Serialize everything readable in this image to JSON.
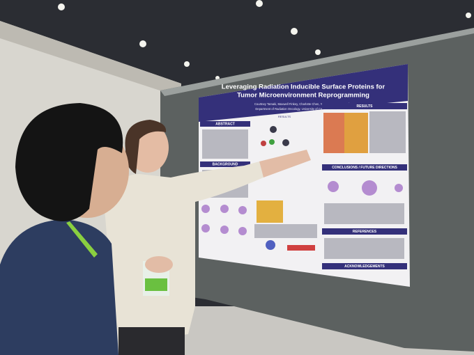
{
  "poster": {
    "title_lines": [
      "Leveraging Radiation Inducible Surface Proteins for",
      "Tumor Microenvironment Reprogramming"
    ],
    "authors": "Courtney Tamaki, Maxwell Finkey, Charlotte Chen, Yang Xu, Nam Woo Cho",
    "affiliation": "Department of Radiation Oncology, University of California, San Francisco",
    "sections": [
      "ABSTRACT",
      "RESULTS",
      "RESULTS",
      "BACKGROUND",
      "CONCLUSIONS / FUTURE DIRECTIONS",
      "REFERENCES",
      "ACKNOWLEDGEMENTS"
    ]
  }
}
